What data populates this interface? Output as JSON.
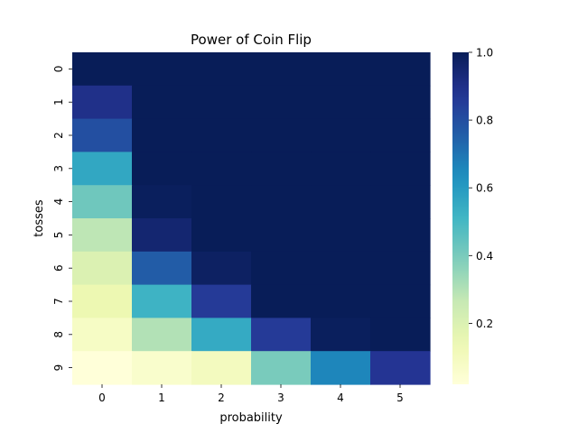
{
  "chart_data": {
    "type": "heatmap",
    "title": "Power of Coin Flip",
    "xlabel": "probability",
    "ylabel": "tosses",
    "x_categories": [
      "0",
      "1",
      "2",
      "3",
      "4",
      "5"
    ],
    "y_categories": [
      "0",
      "1",
      "2",
      "3",
      "4",
      "5",
      "6",
      "7",
      "8",
      "9"
    ],
    "values": [
      [
        1.0,
        1.0,
        1.0,
        1.0,
        1.0,
        1.0
      ],
      [
        0.9,
        1.0,
        1.0,
        1.0,
        1.0,
        1.0
      ],
      [
        0.8,
        1.0,
        1.0,
        1.0,
        1.0,
        1.0
      ],
      [
        0.56,
        1.0,
        1.0,
        1.0,
        1.0,
        1.0
      ],
      [
        0.42,
        0.99,
        1.0,
        1.0,
        1.0,
        1.0
      ],
      [
        0.28,
        0.95,
        1.0,
        1.0,
        1.0,
        1.0
      ],
      [
        0.2,
        0.76,
        0.98,
        1.0,
        1.0,
        1.0
      ],
      [
        0.14,
        0.52,
        0.86,
        1.0,
        1.0,
        1.0
      ],
      [
        0.08,
        0.3,
        0.55,
        0.86,
        0.99,
        1.0
      ],
      [
        0.02,
        0.06,
        0.1,
        0.4,
        0.66,
        0.88
      ]
    ],
    "colorbar": {
      "min": 0.02,
      "max": 1.0,
      "ticks": [
        0.2,
        0.4,
        0.6,
        0.8,
        1.0
      ],
      "tick_labels": [
        "0.2",
        "0.4",
        "0.6",
        "0.8",
        "1.0"
      ],
      "colormap": "YlGnBu"
    }
  }
}
